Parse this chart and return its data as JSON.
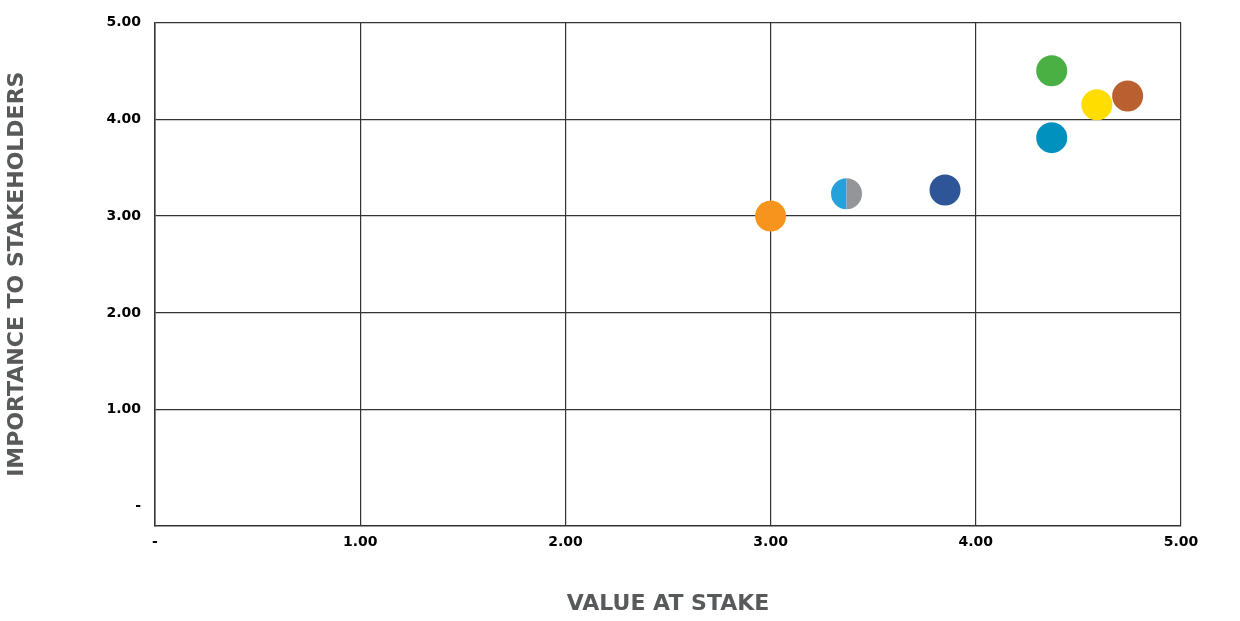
{
  "chart_data": {
    "type": "scatter",
    "xlabel": "VALUE AT STAKE",
    "ylabel": "IMPORTANCE TO STAKEHOLDERS",
    "x": [
      3.0,
      3.33,
      3.41,
      3.85,
      4.37,
      4.37,
      4.59,
      4.74
    ],
    "values": [
      3.0,
      3.23,
      3.23,
      3.27,
      4.5,
      3.81,
      4.15,
      4.24
    ],
    "sizes": [
      1,
      0.5,
      0.5,
      1,
      1,
      1,
      1,
      1
    ],
    "colors": [
      "#f7941d",
      "#27a0db",
      "#939598",
      "#2e5597",
      "#4bb043",
      "#0091bf",
      "#ffdd00",
      "#b95f30"
    ],
    "xlim": [
      0,
      5
    ],
    "ylim": [
      -0.2,
      5
    ],
    "xticks": [
      {
        "value": 0,
        "label": "-"
      },
      {
        "value": 1,
        "label": "1.00"
      },
      {
        "value": 2,
        "label": "2.00"
      },
      {
        "value": 3,
        "label": "3.00"
      },
      {
        "value": 4,
        "label": "4.00"
      },
      {
        "value": 5,
        "label": "5.00"
      }
    ],
    "yticks": [
      {
        "value": 0,
        "label": "-"
      },
      {
        "value": 1,
        "label": "1.00"
      },
      {
        "value": 2,
        "label": "2.00"
      },
      {
        "value": 3,
        "label": "3.00"
      },
      {
        "value": 4,
        "label": "4.00"
      },
      {
        "value": 5,
        "label": "5.00"
      }
    ],
    "grid": true,
    "marker": "circle"
  }
}
